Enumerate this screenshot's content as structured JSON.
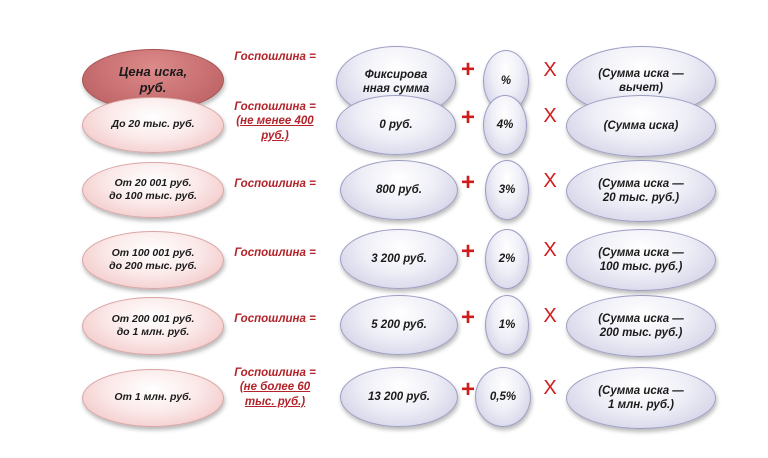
{
  "rows": [
    {
      "price": "Цена иска,\nруб.",
      "formula_lines": [
        "Госпошлина ="
      ],
      "fixed": "Фиксирова\nнная сумма",
      "percent": "%",
      "base": "(Сумма иска —\nвычет)",
      "plus": "+",
      "times": "X"
    },
    {
      "price": "До 20 тыс. руб.",
      "formula_lines": [
        "Госпошлина =",
        "(не менее 400",
        "руб.)"
      ],
      "fixed": "0 руб.",
      "percent": "4%",
      "base": "(Сумма иска)",
      "plus": "+",
      "times": "X"
    },
    {
      "price": "От 20 001 руб.\nдо 100 тыс. руб.",
      "formula_lines": [
        "Госпошлина ="
      ],
      "fixed": "800 руб.",
      "percent": "3%",
      "base": "(Сумма иска —\n20 тыс. руб.)",
      "plus": "+",
      "times": "X"
    },
    {
      "price": "От 100 001 руб.\nдо 200 тыс. руб.",
      "formula_lines": [
        "Госпошлина ="
      ],
      "fixed": "3 200 руб.",
      "percent": "2%",
      "base": "(Сумма иска —\n100 тыс. руб.)",
      "plus": "+",
      "times": "X"
    },
    {
      "price": "От 200 001 руб.\nдо 1 млн. руб.",
      "formula_lines": [
        "Госпошлина ="
      ],
      "fixed": "5 200 руб.",
      "percent": "1%",
      "base": "(Сумма иска —\n200 тыс. руб.)",
      "plus": "+",
      "times": "X"
    },
    {
      "price": "От 1 млн. руб.",
      "formula_lines": [
        "Госпошлина =",
        "(не более 60",
        "тыс. руб.)"
      ],
      "fixed": "13 200 руб.",
      "percent": "0,5%",
      "base": "(Сумма иска —\n1 млн. руб.)",
      "plus": "+",
      "times": "X"
    }
  ],
  "colors": {
    "header_oval": "#c97072",
    "price_oval": "#f3cccc",
    "blue_oval": "#e6e6f2",
    "formula_text": "#b2232a",
    "operator": "#d11c1c"
  }
}
